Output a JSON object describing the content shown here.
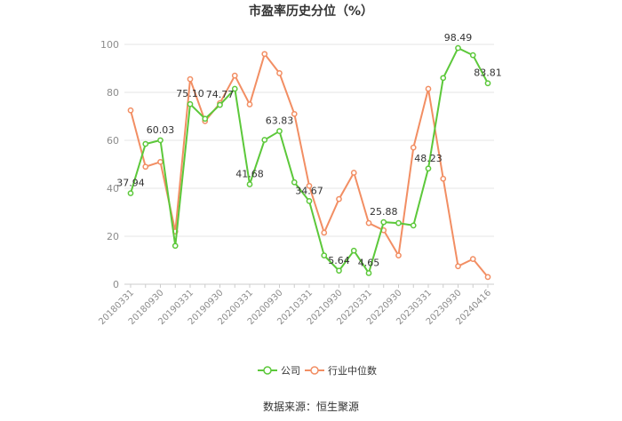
{
  "chart_data": {
    "type": "line",
    "title": "市盈率历史分位（%）",
    "categories": [
      "20180331",
      "",
      "20180930",
      "",
      "20190331",
      "",
      "20190930",
      "",
      "20200331",
      "",
      "20200930",
      "",
      "20210331",
      "",
      "20210930",
      "",
      "20220331",
      "",
      "20220930",
      "",
      "20230331",
      "",
      "20230930",
      "",
      "20240416"
    ],
    "ylim": [
      0,
      100
    ],
    "yticks": [
      0,
      20,
      40,
      60,
      80,
      100
    ],
    "grid": true,
    "legend_position": "bottom",
    "series": [
      {
        "name": "公司",
        "color": "#5cc83a",
        "values": [
          37.94,
          58.5,
          60.03,
          16.0,
          75.1,
          69.0,
          74.77,
          81.5,
          41.68,
          60.2,
          63.83,
          42.5,
          34.67,
          12.0,
          5.64,
          14.0,
          4.65,
          25.88,
          25.5,
          24.5,
          48.23,
          86.0,
          98.49,
          95.5,
          83.81
        ],
        "labels": {
          "0": "37.94",
          "2": "60.03",
          "4": "75.10",
          "6": "74.77",
          "8": "41.68",
          "10": "63.83",
          "12": "34.67",
          "14": "5.64",
          "16": "4.65",
          "17": "25.88",
          "20": "48.23",
          "22": "98.49",
          "24": "83.81"
        }
      },
      {
        "name": "行业中位数",
        "color": "#f28e63",
        "values": [
          72.5,
          49.0,
          51.0,
          22.0,
          85.5,
          68.0,
          75.5,
          87.0,
          75.0,
          96.0,
          88.0,
          71.0,
          41.0,
          21.5,
          35.5,
          46.5,
          25.5,
          22.5,
          12.0,
          57.0,
          81.5,
          44.0,
          7.5,
          10.5,
          3.0
        ]
      }
    ]
  },
  "source_text": "数据来源：恒生聚源"
}
